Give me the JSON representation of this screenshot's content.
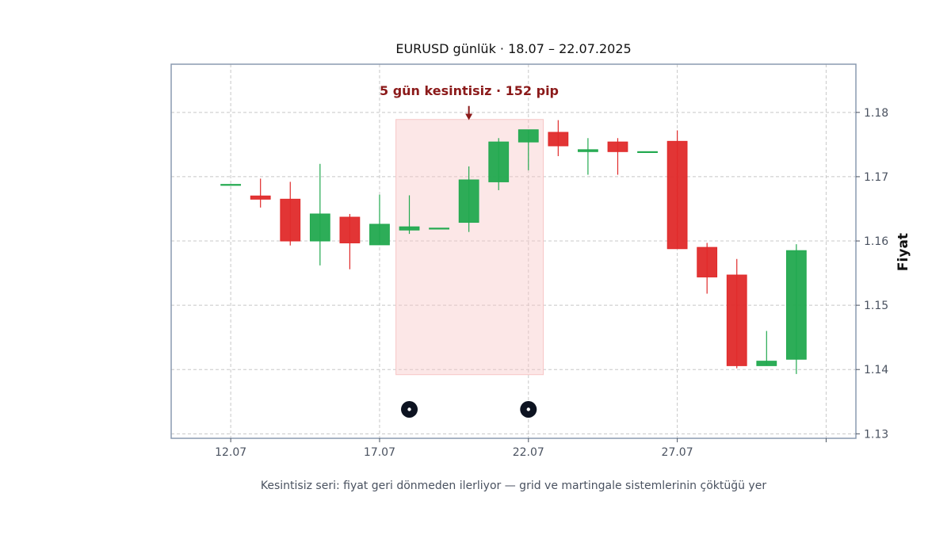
{
  "chart_data": {
    "type": "candlestick",
    "title": "EURUSD günlük · 18.07 – 22.07.2025",
    "ylabel": "Fiyat",
    "caption": "Kesintisiz seri: fiyat geri dönmeden ilerliyor — grid ve martingale sistemlerinin çöktüğü yer",
    "x_tick_labels": [
      "12.07",
      "17.07",
      "22.07",
      "27.07",
      ""
    ],
    "x_tick_index": [
      0,
      5,
      10,
      15,
      20
    ],
    "y_ticks": [
      1.13,
      1.14,
      1.15,
      1.16,
      1.17,
      1.18
    ],
    "ylim": [
      1.1293,
      1.1875
    ],
    "xlim": [
      -2,
      21
    ],
    "grid": true,
    "colors": {
      "up": "#22a94f",
      "down": "#e02a2a",
      "highlight": "#f7c6c6",
      "annotation": "#8b1a1a",
      "marker": "#0d1321",
      "frame": "#8a9ab0"
    },
    "candles": [
      {
        "i": 0,
        "open": 1.1688,
        "high": 1.1688,
        "low": 1.1688,
        "close": 1.1688
      },
      {
        "i": 1,
        "open": 1.167,
        "high": 1.1697,
        "low": 1.1652,
        "close": 1.1665
      },
      {
        "i": 2,
        "open": 1.1665,
        "high": 1.1692,
        "low": 1.1593,
        "close": 1.16
      },
      {
        "i": 3,
        "open": 1.16,
        "high": 1.172,
        "low": 1.1562,
        "close": 1.1642
      },
      {
        "i": 4,
        "open": 1.1637,
        "high": 1.1642,
        "low": 1.1556,
        "close": 1.1597
      },
      {
        "i": 5,
        "open": 1.1594,
        "high": 1.1672,
        "low": 1.1594,
        "close": 1.1626
      },
      {
        "i": 6,
        "open": 1.1617,
        "high": 1.1671,
        "low": 1.1611,
        "close": 1.1622
      },
      {
        "i": 7,
        "open": 1.162,
        "high": 1.162,
        "low": 1.162,
        "close": 1.162
      },
      {
        "i": 8,
        "open": 1.1629,
        "high": 1.1716,
        "low": 1.1614,
        "close": 1.1695
      },
      {
        "i": 9,
        "open": 1.1692,
        "high": 1.176,
        "low": 1.1679,
        "close": 1.1754
      },
      {
        "i": 10,
        "open": 1.1754,
        "high": 1.1773,
        "low": 1.171,
        "close": 1.1773
      },
      {
        "i": 11,
        "open": 1.1769,
        "high": 1.1788,
        "low": 1.1732,
        "close": 1.1748
      },
      {
        "i": 12,
        "open": 1.1739,
        "high": 1.176,
        "low": 1.1703,
        "close": 1.1742
      },
      {
        "i": 13,
        "open": 1.1754,
        "high": 1.176,
        "low": 1.1703,
        "close": 1.1739
      },
      {
        "i": 14,
        "open": 1.1739,
        "high": 1.1739,
        "low": 1.1739,
        "close": 1.1739
      },
      {
        "i": 15,
        "open": 1.1755,
        "high": 1.1772,
        "low": 1.1588,
        "close": 1.1588
      },
      {
        "i": 16,
        "open": 1.159,
        "high": 1.1597,
        "low": 1.1518,
        "close": 1.1544
      },
      {
        "i": 17,
        "open": 1.1547,
        "high": 1.1572,
        "low": 1.1402,
        "close": 1.1406
      },
      {
        "i": 18,
        "open": 1.1406,
        "high": 1.146,
        "low": 1.1406,
        "close": 1.1413
      },
      {
        "i": 19,
        "open": 1.1416,
        "high": 1.1595,
        "low": 1.1393,
        "close": 1.1585
      }
    ],
    "highlight": {
      "x_from": 5.55,
      "x_to": 10.5,
      "y_from": 1.1392,
      "y_to": 1.1789
    },
    "annotation": {
      "text": "5 gün kesintisiz · 152 pip",
      "arrow_x": 8,
      "arrow_y_from": 1.181,
      "arrow_y_to": 1.1788
    },
    "markers": [
      {
        "i": 6,
        "y": 1.1338
      },
      {
        "i": 10,
        "y": 1.1338
      }
    ]
  }
}
